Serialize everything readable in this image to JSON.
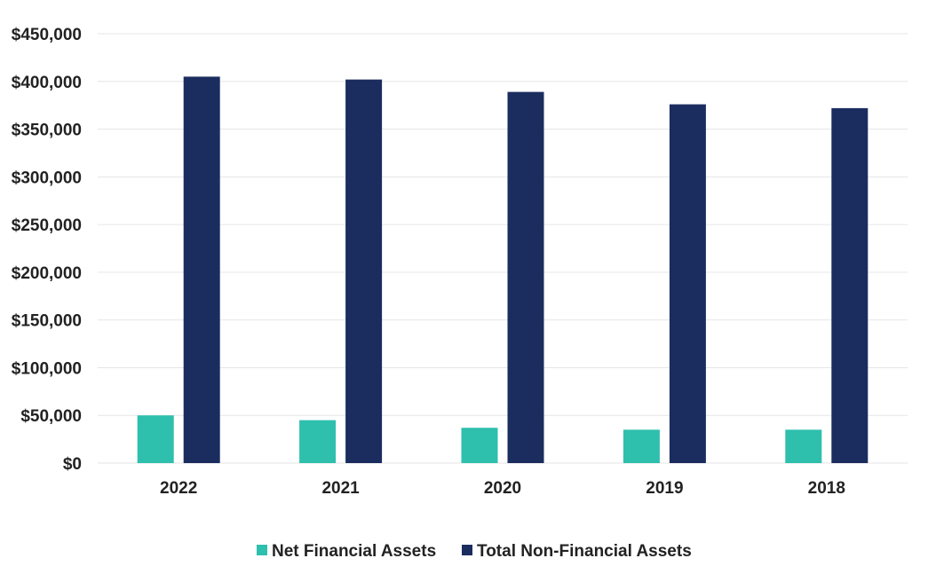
{
  "chart_data": {
    "type": "bar",
    "title": "",
    "xlabel": "",
    "ylabel": "",
    "categories": [
      "2022",
      "2021",
      "2020",
      "2019",
      "2018"
    ],
    "series": [
      {
        "name": "Net Financial Assets",
        "color": "#2ebfad",
        "values": [
          50000,
          45000,
          37000,
          35000,
          35000
        ]
      },
      {
        "name": "Total Non-Financial Assets",
        "color": "#1b2d5f",
        "values": [
          405000,
          402000,
          389000,
          376000,
          372000
        ]
      }
    ],
    "ylim": [
      0,
      450000
    ],
    "yticks": [
      0,
      50000,
      100000,
      150000,
      200000,
      250000,
      300000,
      350000,
      400000,
      450000
    ],
    "ytick_labels": [
      "$0",
      "$50,000",
      "$100,000",
      "$150,000",
      "$200,000",
      "$250,000",
      "$300,000",
      "$350,000",
      "$400,000",
      "$450,000"
    ],
    "grid": true,
    "legend_position": "bottom-center"
  }
}
